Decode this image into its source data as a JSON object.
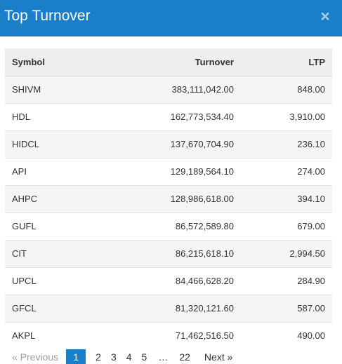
{
  "header": {
    "title": "Top Turnover",
    "close_label": "×"
  },
  "table": {
    "columns": {
      "symbol": "Symbol",
      "turnover": "Turnover",
      "ltp": "LTP"
    },
    "rows": [
      {
        "symbol": "SHIVM",
        "turnover": "383,111,042.00",
        "ltp": "848.00"
      },
      {
        "symbol": "HDL",
        "turnover": "162,773,534.40",
        "ltp": "3,910.00"
      },
      {
        "symbol": "HIDCL",
        "turnover": "137,670,704.90",
        "ltp": "236.10"
      },
      {
        "symbol": "API",
        "turnover": "129,189,564.10",
        "ltp": "274.00"
      },
      {
        "symbol": "AHPC",
        "turnover": "128,986,618.00",
        "ltp": "394.10"
      },
      {
        "symbol": "GUFL",
        "turnover": "86,572,589.80",
        "ltp": "679.00"
      },
      {
        "symbol": "CIT",
        "turnover": "86,215,618.10",
        "ltp": "2,994.50"
      },
      {
        "symbol": "UPCL",
        "turnover": "84,466,628.20",
        "ltp": "284.90"
      },
      {
        "symbol": "GFCL",
        "turnover": "81,320,121.60",
        "ltp": "587.00"
      },
      {
        "symbol": "AKPL",
        "turnover": "71,462,516.50",
        "ltp": "490.00"
      }
    ]
  },
  "pagination": {
    "previous": "«  Previous",
    "pages": [
      "1",
      "2",
      "3",
      "4",
      "5"
    ],
    "ellipsis": "…",
    "last": "22",
    "next": "Next  »",
    "current": "1"
  },
  "colors": {
    "header_bg": "#1b7ec8",
    "active_page_bg": "#1b7ec8",
    "row_alt_bg": "#f5f5f5",
    "head_bg": "#eeeeee"
  }
}
